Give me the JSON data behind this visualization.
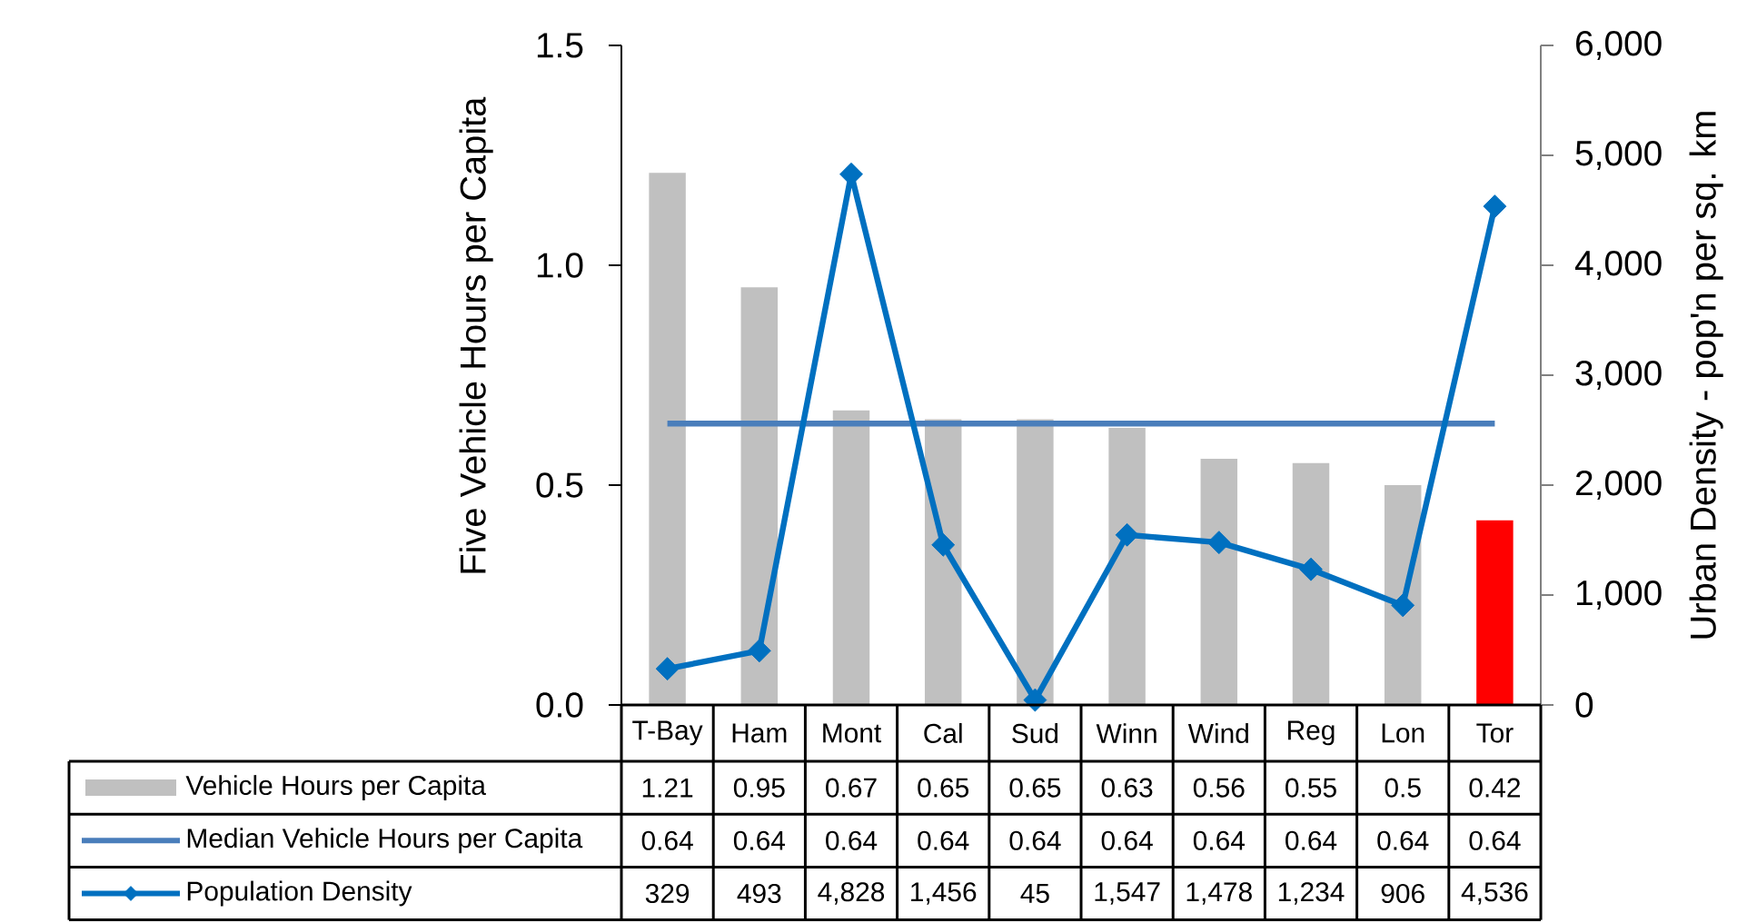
{
  "chart_data": {
    "type": "bar",
    "ylabel": "Five Vehicle Hours per Capita",
    "y2label": "Urban Density - pop'n per sq. km",
    "categories": [
      "T-Bay",
      "Ham",
      "Mont",
      "Cal",
      "Sud",
      "Winn",
      "Wind",
      "Reg",
      "Lon",
      "Tor"
    ],
    "series": [
      {
        "name": "Vehicle Hours per Capita",
        "colors": [
          "#c0c0c0",
          "#c0c0c0",
          "#c0c0c0",
          "#c0c0c0",
          "#c0c0c0",
          "#c0c0c0",
          "#c0c0c0",
          "#c0c0c0",
          "#c0c0c0",
          "#ff0000"
        ],
        "values": [
          1.21,
          0.95,
          0.67,
          0.65,
          0.65,
          0.63,
          0.56,
          0.55,
          0.5,
          0.42
        ]
      },
      {
        "name": "Median Vehicle Hours per Capita",
        "type": "line",
        "color": "#4a7ebb",
        "values": [
          0.64,
          0.64,
          0.64,
          0.64,
          0.64,
          0.64,
          0.64,
          0.64,
          0.64,
          0.64
        ]
      },
      {
        "name": "Population Density",
        "type": "line",
        "axis": "y2",
        "color": "#0070c0",
        "marker": "diamond",
        "values": [
          329,
          493,
          4828,
          1456,
          45,
          1547,
          1478,
          1234,
          906,
          4536
        ],
        "value_labels": [
          "329",
          "493",
          "4,828",
          "1,456",
          "45",
          "1,547",
          "1,478",
          "1,234",
          "906",
          "4,536"
        ]
      }
    ],
    "ylim": [
      0,
      1.5
    ],
    "yticks": [
      {
        "value": 0,
        "label": "0.0"
      },
      0.5,
      {
        "value": 1,
        "label": "1.0"
      },
      1.5
    ],
    "y2lim": [
      0,
      6000
    ],
    "y2ticks": [
      0,
      {
        "value": 1000,
        "label": "1,000"
      },
      {
        "value": 2000,
        "label": "2,000"
      },
      {
        "value": 3000,
        "label": "3,000"
      },
      {
        "value": 4000,
        "label": "4,000"
      },
      {
        "value": 5000,
        "label": "5,000"
      },
      {
        "value": 6000,
        "label": "6,000"
      }
    ],
    "data_labels": true,
    "legend": "bottom"
  }
}
